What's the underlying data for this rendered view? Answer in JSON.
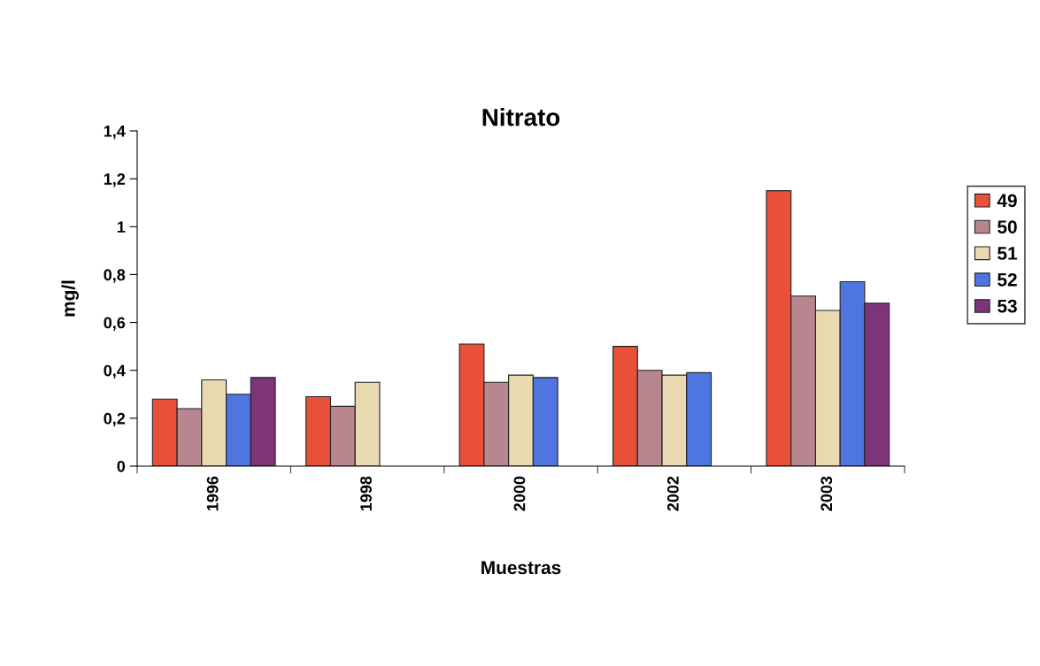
{
  "chart_data": {
    "type": "bar",
    "title": "Nitrato",
    "xlabel": "Muestras",
    "ylabel": "mg/l",
    "categories": [
      "1996",
      "1998",
      "2000",
      "2002",
      "2003"
    ],
    "series": [
      {
        "name": "49",
        "color": "#e8503a",
        "values": [
          0.28,
          0.29,
          0.51,
          0.5,
          1.15
        ]
      },
      {
        "name": "50",
        "color": "#b7868f",
        "values": [
          0.24,
          0.25,
          0.35,
          0.4,
          0.71
        ]
      },
      {
        "name": "51",
        "color": "#e8d9b0",
        "values": [
          0.36,
          0.35,
          0.38,
          0.38,
          0.65
        ]
      },
      {
        "name": "52",
        "color": "#4f76e0",
        "values": [
          0.3,
          null,
          0.37,
          0.39,
          0.77
        ]
      },
      {
        "name": "53",
        "color": "#7e3479",
        "values": [
          0.37,
          null,
          null,
          null,
          0.68
        ]
      }
    ],
    "ylim": [
      0,
      1.4
    ],
    "yticks": [
      0,
      {
        "value": 0.2,
        "label": "0,2"
      },
      {
        "value": 0.4,
        "label": "0,4"
      },
      {
        "value": 0.6,
        "label": "0,6"
      },
      {
        "value": 0.8,
        "label": "0,8"
      },
      1,
      {
        "value": 1.2,
        "label": "1,2"
      },
      {
        "value": 1.4,
        "label": "1,4"
      }
    ],
    "grid": false,
    "legend": "right"
  }
}
